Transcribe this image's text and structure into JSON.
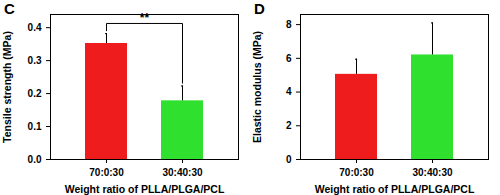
{
  "chart_data": [
    {
      "type": "bar",
      "panel_label": "C",
      "x_label": "Weight ratio of PLLA/PLGA/PCL",
      "y_label": "Tensile strength (MPa)",
      "categories": [
        "70:0:30",
        "30:40:30"
      ],
      "values": [
        0.352,
        0.178
      ],
      "errors": [
        0.03,
        0.045
      ],
      "colors": [
        "#ee1c1c",
        "#2fe02f"
      ],
      "ylim": [
        0,
        0.44
      ],
      "yticks": [
        {
          "value": 0,
          "label": "0.0"
        },
        0.1,
        0.2,
        0.3,
        0.4
      ],
      "annotations": [
        {
          "text": "**",
          "between": [
            "70:0:30",
            "30:40:30"
          ]
        }
      ]
    },
    {
      "type": "bar",
      "panel_label": "D",
      "x_label": "Weight ratio of PLLA/PLGA/PCL",
      "y_label": "Elastic modulus (MPa)",
      "categories": [
        "70:0:30",
        "30:40:30"
      ],
      "values": [
        5.05,
        6.2
      ],
      "errors": [
        0.9,
        1.9
      ],
      "colors": [
        "#ee1c1c",
        "#2fe02f"
      ],
      "ylim": [
        0,
        8.6
      ],
      "yticks": [
        0,
        2,
        4,
        6,
        8
      ]
    }
  ]
}
